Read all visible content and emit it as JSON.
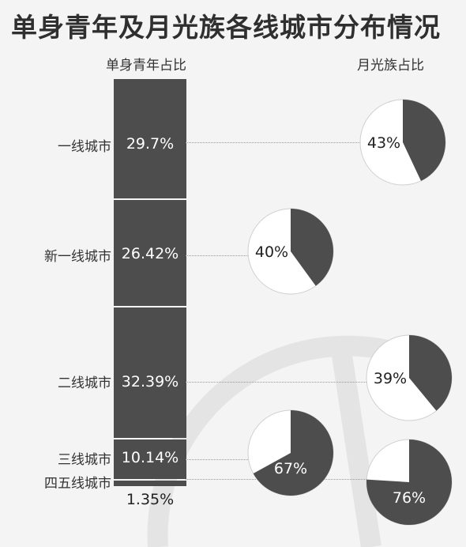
{
  "title": "单身青年及月光族各线城市分布情况",
  "colors": {
    "dark": "#4d4d4d",
    "light": "#ffffff",
    "background": "#f4f4f4"
  },
  "chart_data": [
    {
      "type": "bar",
      "stacked": true,
      "title": "单身青年占比",
      "categories": [
        "一线城市",
        "新一线城市",
        "二线城市",
        "三线城市",
        "四五线城市"
      ],
      "values": [
        29.7,
        26.42,
        32.39,
        10.14,
        1.35
      ],
      "value_labels": [
        "29.7%",
        "26.42%",
        "32.39%",
        "10.14%",
        "1.35%"
      ]
    },
    {
      "type": "pie",
      "title": "月光族占比",
      "categories": [
        "一线城市",
        "新一线城市",
        "二线城市",
        "三线城市",
        "四五线城市"
      ],
      "values": [
        43,
        40,
        39,
        67,
        76
      ],
      "value_labels": [
        "43%",
        "40%",
        "39%",
        "67%",
        "76%"
      ]
    }
  ]
}
